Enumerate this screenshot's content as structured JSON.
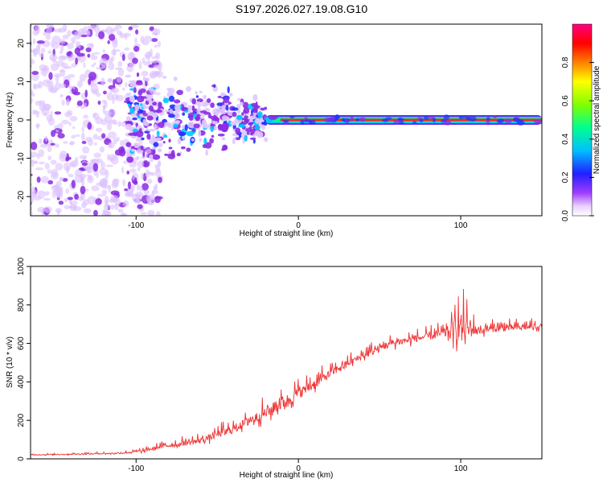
{
  "figure_title": "S197.2026.027.19.08.G10",
  "chart_data": [
    {
      "type": "heatmap",
      "title": "S197.2026.027.19.08.G10",
      "xlabel": "Height of straight line (km)",
      "ylabel": "Frequency (Hz)",
      "xlim": [
        -165,
        150
      ],
      "ylim": [
        -25,
        25
      ],
      "xticks": [
        -100,
        0,
        100
      ],
      "yticks": [
        -20,
        -10,
        0,
        10,
        20
      ],
      "colorbar": {
        "label": "Normalized spectral amplitude",
        "range": [
          0,
          1
        ],
        "ticks": [
          0.0,
          0.2,
          0.4,
          0.6,
          0.8
        ],
        "colors": [
          "#ffffff",
          "#7f00ff",
          "#0000ff",
          "#00bfff",
          "#00ff7f",
          "#7fff00",
          "#ffff00",
          "#ff7f00",
          "#ff0000",
          "#ff007f"
        ]
      },
      "description_points": {
        "noise_region_x": [
          -165,
          -105
        ],
        "scattered_region_x": [
          -105,
          -20
        ],
        "signal_line": {
          "x_start": -20,
          "x_end": 150,
          "frequency": 0
        }
      }
    },
    {
      "type": "line",
      "xlabel": "Height of straight line (km)",
      "ylabel": "SNR (10 * v/v)",
      "xlim": [
        -165,
        150
      ],
      "ylim": [
        0,
        1000
      ],
      "xticks": [
        -100,
        0,
        100
      ],
      "yticks": [
        0,
        200,
        400,
        600,
        800,
        1000
      ],
      "series": [
        {
          "name": "SNR",
          "color": "#ee3333",
          "x": [
            -165,
            -150,
            -130,
            -110,
            -95,
            -85,
            -75,
            -60,
            -50,
            -40,
            -30,
            -20,
            -10,
            0,
            10,
            20,
            30,
            40,
            50,
            60,
            70,
            80,
            90,
            95,
            100,
            110,
            120,
            130,
            140,
            150
          ],
          "values": [
            20,
            22,
            25,
            28,
            40,
            60,
            70,
            90,
            120,
            150,
            190,
            230,
            280,
            330,
            380,
            440,
            490,
            530,
            570,
            600,
            615,
            630,
            645,
            655,
            660,
            660,
            670,
            675,
            680,
            685
          ],
          "noise": [
            8,
            8,
            10,
            12,
            20,
            30,
            40,
            50,
            60,
            70,
            80,
            100,
            110,
            90,
            80,
            70,
            60,
            60,
            60,
            60,
            60,
            60,
            80,
            150,
            250,
            60,
            55,
            55,
            50,
            45
          ]
        }
      ]
    }
  ]
}
